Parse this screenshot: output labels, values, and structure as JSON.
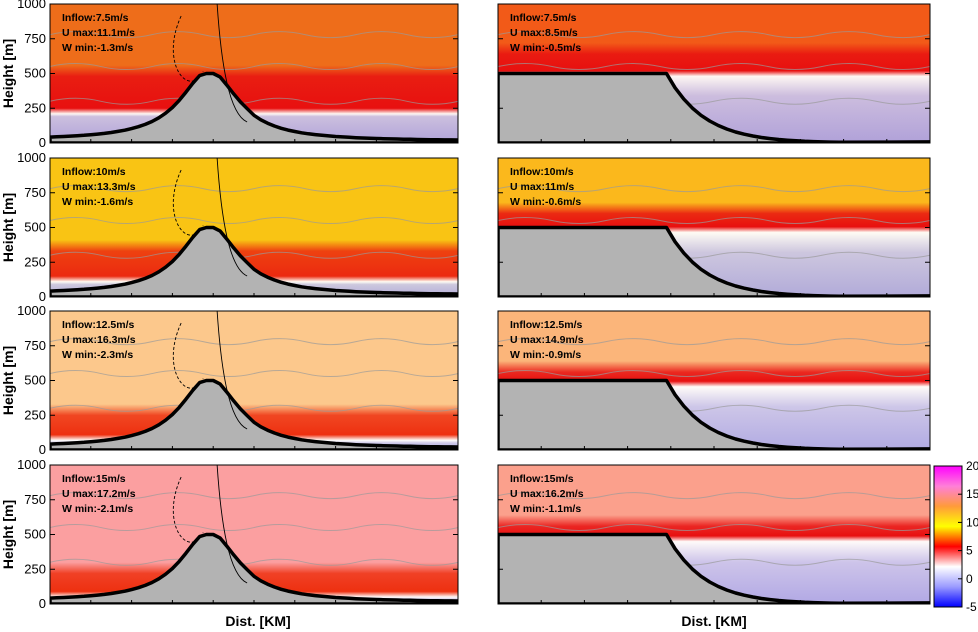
{
  "chart_data": {
    "type": "heatmap",
    "xlabel": "Dist. [KM]",
    "ylabel": "Height [m]",
    "ylim": [
      0,
      1000
    ],
    "yticks": [
      "0",
      "250",
      "500",
      "750",
      "1000"
    ],
    "colorbar": {
      "range": [
        -5,
        20
      ],
      "ticks": [
        "20",
        "15",
        "10",
        "5",
        "0",
        "-5"
      ],
      "colors": [
        "#ff00ff",
        "#ff7fd8",
        "#ff9b3a",
        "#ffff00",
        "#ff0000",
        "#ffffff",
        "#9a9aff",
        "#0000ff"
      ]
    },
    "grid": false,
    "panels": [
      {
        "row": 0,
        "col": 0,
        "terrain": "hill",
        "hill_height": 500,
        "jet_base": 250,
        "jet_top": 480,
        "background": "#ee6d1a",
        "jet_color": "#e81010",
        "wake_top": 300,
        "annotations": [
          "Inflow:7.5m/s",
          "U max:11.1m/s",
          "W min:-1.3m/s"
        ]
      },
      {
        "row": 0,
        "col": 1,
        "terrain": "plateau",
        "hill_height": 500,
        "jet_base": 520,
        "jet_top": 640,
        "background": "#f25a18",
        "jet_color": "#e81010",
        "wake_top": 420,
        "annotations": [
          "Inflow:7.5m/s",
          "U max:8.5m/s",
          "W min:-0.5m/s"
        ]
      },
      {
        "row": 1,
        "col": 0,
        "terrain": "hill",
        "hill_height": 500,
        "jet_base": 150,
        "jet_top": 330,
        "background": "#f9c414",
        "jet_color": "#ec2a10",
        "wake_top": 220,
        "annotations": [
          "Inflow:10m/s",
          "U max:13.3m/s",
          "W min:-1.6m/s"
        ]
      },
      {
        "row": 1,
        "col": 1,
        "terrain": "plateau",
        "hill_height": 500,
        "jet_base": 505,
        "jet_top": 600,
        "background": "#fbb81c",
        "jet_color": "#e81010",
        "wake_top": 400,
        "annotations": [
          "Inflow:10m/s",
          "U max:11m/s",
          "W min:-0.6m/s"
        ]
      },
      {
        "row": 2,
        "col": 0,
        "terrain": "hill",
        "hill_height": 500,
        "jet_base": 110,
        "jet_top": 250,
        "background": "#fcc88c",
        "jet_color": "#ee3010",
        "wake_top": 170,
        "annotations": [
          "Inflow:12.5m/s",
          "U max:16.3m/s",
          "W min:-2.3m/s"
        ]
      },
      {
        "row": 2,
        "col": 1,
        "terrain": "plateau",
        "hill_height": 500,
        "jet_base": 495,
        "jet_top": 560,
        "background": "#fbb57a",
        "jet_color": "#e81010",
        "wake_top": 390,
        "annotations": [
          "Inflow:12.5m/s",
          "U max:14.9m/s",
          "W min:-0.9m/s"
        ]
      },
      {
        "row": 3,
        "col": 0,
        "terrain": "hill",
        "hill_height": 500,
        "jet_base": 90,
        "jet_top": 220,
        "background": "#fb9fa0",
        "jet_color": "#ee3010",
        "wake_top": 140,
        "annotations": [
          "Inflow:15m/s",
          "U max:17.2m/s",
          "W min:-2.1m/s"
        ]
      },
      {
        "row": 3,
        "col": 1,
        "terrain": "plateau",
        "hill_height": 500,
        "jet_base": 490,
        "jet_top": 560,
        "background": "#fba08c",
        "jet_color": "#e81010",
        "wake_top": 380,
        "annotations": [
          "Inflow:15m/s",
          "U max:16.2m/s",
          "W min:-1.1m/s"
        ]
      }
    ]
  }
}
